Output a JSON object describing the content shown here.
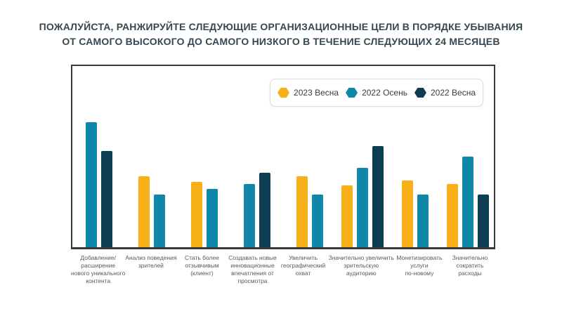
{
  "chart_data": {
    "type": "bar",
    "title": "ПОЖАЛУЙСТА, РАНЖИРУЙТЕ СЛЕДУЮЩИЕ ОРГАНИЗАЦИОННЫЕ ЦЕЛИ В ПОРЯДКЕ УБЫВАНИЯ\nОТ САМОГО ВЫСОКОГО ДО САМОГО НИЗКОГО В ТЕЧЕНИЕ СЛЕДУЮЩИХ 24 МЕСЯЦЕВ",
    "categories": [
      "Добавление/\nрасширение\nнового уникального\nконтента",
      "Анализ поведения\nзрителей",
      "Стать более\nотзывчивым\n(клиент)",
      "Создавать новые\nинновационные\nвпечатления от\nпросмотра",
      "Увеличить\nгеографический\nохват",
      "Значительно увеличить\nзрительскую\nаудиторию",
      "Монетизировать\nуслуги\nпо-новому",
      "Значительно\nсократить\nрасходы"
    ],
    "series": [
      {
        "name": "2023 Весна",
        "color": "#F8B018",
        "values": [
          null,
          39,
          36,
          null,
          39,
          34,
          37,
          35
        ]
      },
      {
        "name": "2022 Осень",
        "color": "#0F87A8",
        "values": [
          69,
          29,
          32,
          35,
          29,
          44,
          29,
          50
        ]
      },
      {
        "name": "2022 Весна",
        "color": "#0D3D52",
        "values": [
          53,
          null,
          null,
          41,
          null,
          56,
          null,
          29
        ]
      }
    ],
    "ylim": [
      0,
      100
    ],
    "y_axis_visible": false,
    "grid": false,
    "legend_position": "top-right",
    "legend_marker_shape": "hexagon",
    "plot_border_color": "#3A3A3A",
    "title_color": "#37474F",
    "category_label_color": "#595959",
    "legend_text_color": "#3B3B3B"
  }
}
